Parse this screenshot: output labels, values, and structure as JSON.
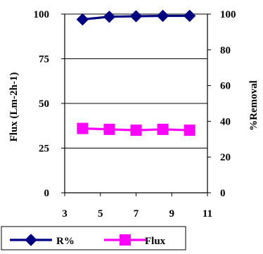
{
  "chart_data": {
    "type": "line",
    "title": "",
    "x": [
      4,
      5.5,
      7,
      8.5,
      10
    ],
    "xlim": [
      3,
      11
    ],
    "x_ticks": [
      "3",
      "5",
      "7",
      "9",
      "11"
    ],
    "xlabel": "",
    "y_left": {
      "label": "Flux (Lm-2h-1)",
      "lim": [
        0,
        100
      ],
      "ticks": [
        "0",
        "25",
        "50",
        "75",
        "100"
      ]
    },
    "y_right": {
      "label": "%Removal",
      "lim": [
        0,
        100
      ],
      "ticks": [
        "0",
        "20",
        "40",
        "60",
        "80",
        "100"
      ]
    },
    "grid": "horizontal",
    "legend": "bottom-left",
    "series": [
      {
        "name": "R%",
        "axis": "right",
        "color": "#000080",
        "marker": "diamond",
        "values": [
          97,
          98.5,
          98.8,
          99,
          99
        ]
      },
      {
        "name": "Flux",
        "axis": "left",
        "color": "#ff00ff",
        "marker": "square",
        "values": [
          36,
          35.5,
          35,
          35.5,
          35
        ]
      }
    ]
  }
}
